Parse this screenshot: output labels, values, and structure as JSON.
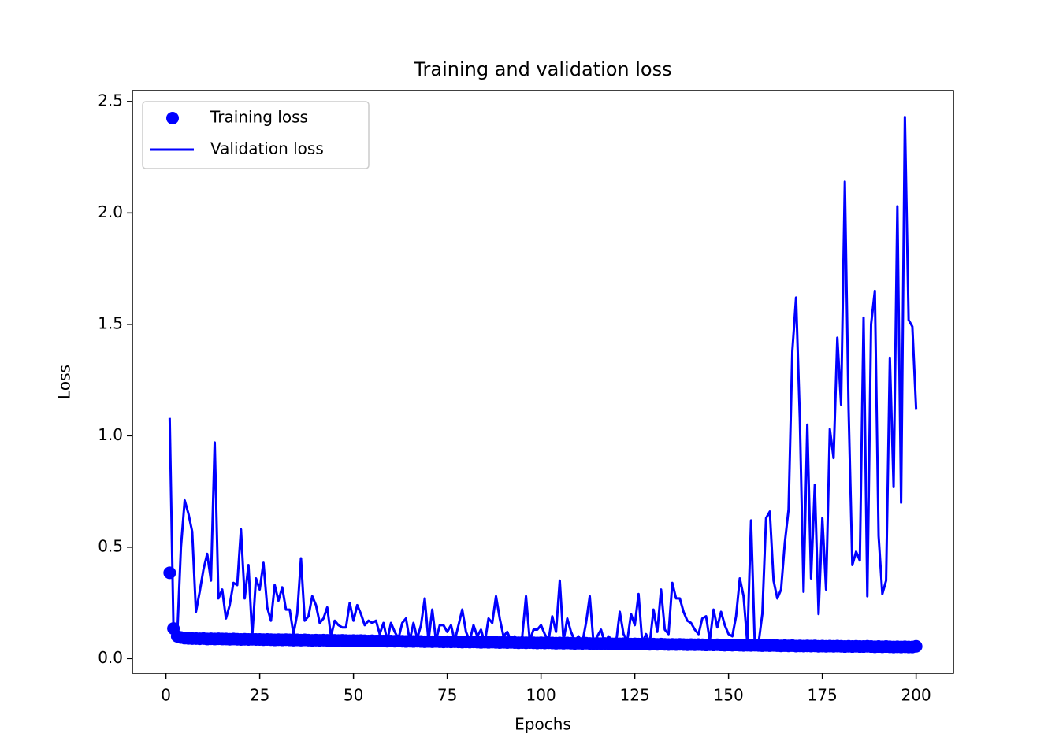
{
  "chart_data": {
    "type": "line",
    "title": "Training and validation loss",
    "x_label": "Epochs",
    "y_label": "Loss",
    "legend": "upper left",
    "x": [
      1,
      2,
      3,
      4,
      5,
      6,
      7,
      8,
      9,
      10,
      11,
      12,
      13,
      14,
      15,
      16,
      17,
      18,
      19,
      20,
      21,
      22,
      23,
      24,
      25,
      26,
      27,
      28,
      29,
      30,
      31,
      32,
      33,
      34,
      35,
      36,
      37,
      38,
      39,
      40,
      41,
      42,
      43,
      44,
      45,
      46,
      47,
      48,
      49,
      50,
      51,
      52,
      53,
      54,
      55,
      56,
      57,
      58,
      59,
      60,
      61,
      62,
      63,
      64,
      65,
      66,
      67,
      68,
      69,
      70,
      71,
      72,
      73,
      74,
      75,
      76,
      77,
      78,
      79,
      80,
      81,
      82,
      83,
      84,
      85,
      86,
      87,
      88,
      89,
      90,
      91,
      92,
      93,
      94,
      95,
      96,
      97,
      98,
      99,
      100,
      101,
      102,
      103,
      104,
      105,
      106,
      107,
      108,
      109,
      110,
      111,
      112,
      113,
      114,
      115,
      116,
      117,
      118,
      119,
      120,
      121,
      122,
      123,
      124,
      125,
      126,
      127,
      128,
      129,
      130,
      131,
      132,
      133,
      134,
      135,
      136,
      137,
      138,
      139,
      140,
      141,
      142,
      143,
      144,
      145,
      146,
      147,
      148,
      149,
      150,
      151,
      152,
      153,
      154,
      155,
      156,
      157,
      158,
      159,
      160,
      161,
      162,
      163,
      164,
      165,
      166,
      167,
      168,
      169,
      170,
      171,
      172,
      173,
      174,
      175,
      176,
      177,
      178,
      179,
      180,
      181,
      182,
      183,
      184,
      185,
      186,
      187,
      188,
      189,
      190,
      191,
      192,
      193,
      194,
      195,
      196,
      197,
      198,
      199,
      200
    ],
    "series": [
      {
        "name": "Training loss",
        "color": "#0000ff",
        "marker": "o",
        "values": [
          0.385,
          0.135,
          0.1,
          0.095,
          0.092,
          0.091,
          0.09,
          0.09,
          0.089,
          0.09,
          0.088,
          0.089,
          0.088,
          0.089,
          0.088,
          0.088,
          0.087,
          0.088,
          0.087,
          0.086,
          0.087,
          0.086,
          0.087,
          0.086,
          0.086,
          0.085,
          0.086,
          0.085,
          0.084,
          0.085,
          0.084,
          0.085,
          0.084,
          0.083,
          0.084,
          0.083,
          0.084,
          0.083,
          0.082,
          0.083,
          0.082,
          0.083,
          0.082,
          0.081,
          0.082,
          0.081,
          0.082,
          0.081,
          0.08,
          0.081,
          0.08,
          0.081,
          0.08,
          0.079,
          0.08,
          0.079,
          0.08,
          0.079,
          0.078,
          0.079,
          0.078,
          0.079,
          0.078,
          0.077,
          0.078,
          0.077,
          0.078,
          0.077,
          0.076,
          0.077,
          0.076,
          0.077,
          0.076,
          0.075,
          0.076,
          0.075,
          0.076,
          0.075,
          0.074,
          0.075,
          0.074,
          0.075,
          0.074,
          0.073,
          0.074,
          0.073,
          0.074,
          0.073,
          0.072,
          0.073,
          0.072,
          0.073,
          0.072,
          0.071,
          0.072,
          0.071,
          0.072,
          0.071,
          0.07,
          0.071,
          0.07,
          0.071,
          0.07,
          0.069,
          0.07,
          0.069,
          0.07,
          0.069,
          0.068,
          0.069,
          0.068,
          0.069,
          0.068,
          0.067,
          0.068,
          0.067,
          0.068,
          0.067,
          0.066,
          0.067,
          0.066,
          0.067,
          0.066,
          0.065,
          0.066,
          0.065,
          0.066,
          0.065,
          0.064,
          0.065,
          0.064,
          0.065,
          0.064,
          0.063,
          0.064,
          0.063,
          0.064,
          0.063,
          0.062,
          0.063,
          0.062,
          0.063,
          0.062,
          0.061,
          0.062,
          0.061,
          0.062,
          0.061,
          0.06,
          0.061,
          0.06,
          0.061,
          0.06,
          0.059,
          0.06,
          0.059,
          0.06,
          0.059,
          0.058,
          0.059,
          0.058,
          0.059,
          0.058,
          0.057,
          0.058,
          0.057,
          0.058,
          0.056,
          0.057,
          0.056,
          0.057,
          0.056,
          0.057,
          0.055,
          0.056,
          0.055,
          0.056,
          0.055,
          0.056,
          0.055,
          0.054,
          0.055,
          0.054,
          0.055,
          0.054,
          0.054,
          0.055,
          0.054,
          0.053,
          0.054,
          0.053,
          0.054,
          0.053,
          0.052,
          0.053,
          0.052,
          0.053,
          0.052,
          0.052,
          0.055
        ]
      },
      {
        "name": "Validation loss",
        "color": "#0000ff",
        "marker": "line",
        "values": [
          1.08,
          0.14,
          0.1,
          0.5,
          0.71,
          0.65,
          0.57,
          0.21,
          0.3,
          0.4,
          0.47,
          0.35,
          0.97,
          0.27,
          0.31,
          0.18,
          0.24,
          0.34,
          0.33,
          0.58,
          0.27,
          0.42,
          0.1,
          0.36,
          0.31,
          0.43,
          0.23,
          0.17,
          0.33,
          0.26,
          0.32,
          0.22,
          0.22,
          0.11,
          0.2,
          0.45,
          0.17,
          0.19,
          0.28,
          0.24,
          0.16,
          0.18,
          0.23,
          0.1,
          0.17,
          0.15,
          0.14,
          0.14,
          0.25,
          0.17,
          0.24,
          0.2,
          0.15,
          0.17,
          0.16,
          0.17,
          0.11,
          0.16,
          0.08,
          0.16,
          0.12,
          0.09,
          0.16,
          0.18,
          0.08,
          0.16,
          0.09,
          0.15,
          0.27,
          0.08,
          0.22,
          0.08,
          0.15,
          0.15,
          0.12,
          0.15,
          0.08,
          0.15,
          0.22,
          0.12,
          0.08,
          0.15,
          0.1,
          0.13,
          0.07,
          0.18,
          0.16,
          0.28,
          0.18,
          0.1,
          0.12,
          0.08,
          0.1,
          0.07,
          0.1,
          0.28,
          0.08,
          0.13,
          0.13,
          0.15,
          0.11,
          0.08,
          0.19,
          0.12,
          0.35,
          0.08,
          0.18,
          0.12,
          0.08,
          0.1,
          0.07,
          0.16,
          0.28,
          0.07,
          0.1,
          0.13,
          0.07,
          0.1,
          0.08,
          0.07,
          0.21,
          0.11,
          0.08,
          0.2,
          0.15,
          0.29,
          0.07,
          0.11,
          0.07,
          0.22,
          0.12,
          0.31,
          0.13,
          0.11,
          0.34,
          0.27,
          0.27,
          0.21,
          0.17,
          0.16,
          0.13,
          0.11,
          0.18,
          0.19,
          0.08,
          0.22,
          0.14,
          0.21,
          0.15,
          0.11,
          0.1,
          0.19,
          0.36,
          0.28,
          0.07,
          0.62,
          0.06,
          0.07,
          0.2,
          0.63,
          0.66,
          0.35,
          0.27,
          0.31,
          0.52,
          0.67,
          1.38,
          1.62,
          1.08,
          0.3,
          1.05,
          0.36,
          0.78,
          0.2,
          0.63,
          0.31,
          1.03,
          0.9,
          1.44,
          1.14,
          2.14,
          1.12,
          0.42,
          0.48,
          0.44,
          1.53,
          0.28,
          1.5,
          1.65,
          0.55,
          0.29,
          0.35,
          1.35,
          0.77,
          2.03,
          0.7,
          2.43,
          1.52,
          1.49,
          1.12
        ]
      }
    ],
    "xlim": [
      -8.95,
      209.95
    ],
    "xticks": [
      0,
      25,
      50,
      75,
      100,
      125,
      150,
      175,
      200
    ],
    "ylim": [
      -0.066,
      2.549
    ],
    "yticks": [
      {
        "value": 0,
        "label": "0.0"
      },
      0.5,
      {
        "value": 1,
        "label": "1.0"
      },
      1.5,
      {
        "value": 2,
        "label": "2.0"
      },
      2.5
    ]
  }
}
